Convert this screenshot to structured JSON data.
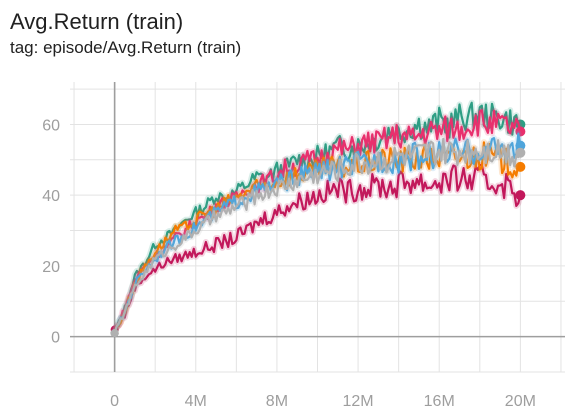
{
  "card": {
    "title": "Avg.Return (train)",
    "tag": "tag: episode/Avg.Return (train)"
  },
  "chart_data": {
    "type": "line",
    "title": "Avg.Return (train)",
    "subtitle": "tag: episode/Avg.Return (train)",
    "xlabel": "",
    "ylabel": "",
    "xlim": [
      -2.2,
      22.2
    ],
    "ylim": [
      -10,
      72
    ],
    "x_ticks": [
      0,
      4,
      8,
      12,
      16,
      20
    ],
    "x_tick_labels": [
      "0",
      "4M",
      "8M",
      "12M",
      "16M",
      "20M"
    ],
    "y_ticks": [
      0,
      20,
      40,
      60
    ],
    "y_tick_labels": [
      "0",
      "20",
      "40",
      "60"
    ],
    "grid": true,
    "legend": "none",
    "x": [
      0,
      0.5,
      1,
      1.5,
      2,
      2.5,
      3,
      3.5,
      4,
      4.5,
      5,
      5.5,
      6,
      6.5,
      7,
      7.5,
      8,
      8.5,
      9,
      9.5,
      10,
      10.5,
      11,
      11.5,
      12,
      12.5,
      13,
      13.5,
      14,
      14.5,
      15,
      15.5,
      16,
      16.5,
      17,
      17.5,
      18,
      18.5,
      19,
      19.5,
      20
    ],
    "series": [
      {
        "color": "#2e9e84",
        "values": [
          1,
          8,
          17,
          21,
          26,
          28,
          30,
          33,
          35,
          37,
          40,
          39,
          41,
          43,
          45,
          45,
          47,
          48,
          50,
          50,
          51,
          52,
          54,
          53,
          54,
          55,
          56,
          58,
          58,
          59,
          60,
          59,
          61,
          60,
          62,
          62,
          63,
          62,
          62,
          61,
          60
        ]
      },
      {
        "color": "#e8306d",
        "values": [
          1,
          8,
          16,
          20,
          23,
          25,
          28,
          30,
          33,
          34,
          37,
          38,
          39,
          42,
          43,
          44,
          46,
          48,
          48,
          50,
          50,
          52,
          53,
          53,
          54,
          55,
          55,
          56,
          57,
          56,
          57,
          58,
          58,
          59,
          59,
          60,
          61,
          60,
          60,
          59,
          58
        ]
      },
      {
        "color": "#c2185b",
        "values": [
          2,
          6,
          14,
          17,
          19,
          21,
          22,
          23,
          24,
          25,
          26,
          27,
          28,
          30,
          32,
          34,
          35,
          37,
          38,
          39,
          40,
          41,
          42,
          41,
          42,
          42,
          43,
          42,
          43,
          44,
          44,
          43,
          44,
          44,
          45,
          44,
          45,
          43,
          44,
          42,
          40
        ]
      },
      {
        "color": "#f57c00",
        "values": [
          1,
          7,
          15,
          20,
          24,
          27,
          30,
          31,
          33,
          35,
          36,
          38,
          39,
          41,
          42,
          43,
          44,
          45,
          46,
          46,
          47,
          48,
          48,
          48,
          49,
          49,
          50,
          50,
          50,
          50,
          51,
          50,
          51,
          50,
          51,
          51,
          51,
          51,
          50,
          49,
          48
        ]
      },
      {
        "color": "#4fa5db",
        "values": [
          1,
          7,
          15,
          19,
          22,
          25,
          27,
          29,
          31,
          33,
          35,
          37,
          38,
          40,
          41,
          42,
          43,
          44,
          45,
          46,
          47,
          47,
          48,
          48,
          49,
          49,
          50,
          50,
          50,
          51,
          51,
          51,
          52,
          52,
          52,
          52,
          53,
          53,
          53,
          53,
          54
        ]
      },
      {
        "color": "#b0b0b0",
        "values": [
          1,
          7,
          14,
          18,
          22,
          24,
          26,
          28,
          30,
          32,
          34,
          35,
          37,
          38,
          40,
          41,
          42,
          43,
          44,
          45,
          46,
          47,
          47,
          48,
          49,
          49,
          50,
          50,
          51,
          51,
          51,
          52,
          52,
          52,
          52,
          53,
          53,
          53,
          53,
          52,
          52
        ]
      }
    ]
  }
}
